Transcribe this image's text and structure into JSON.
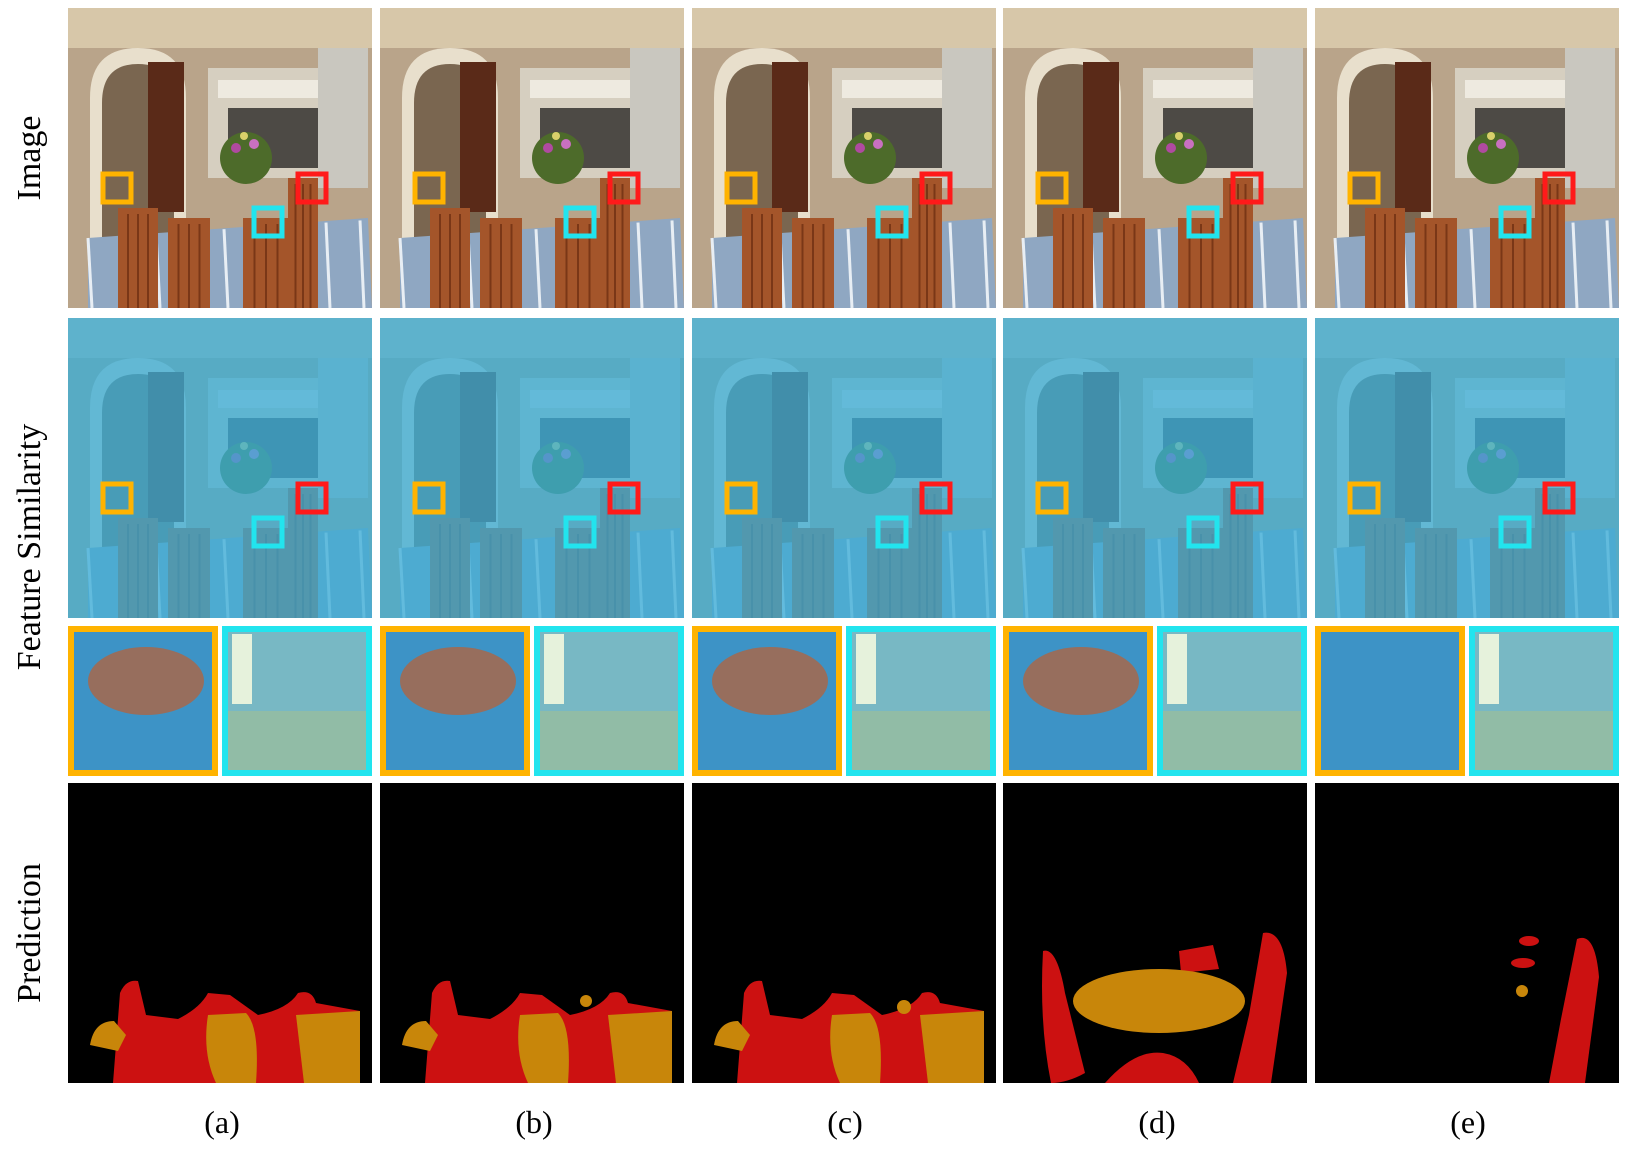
{
  "figure": {
    "row_labels": [
      "Image",
      "Feature Similarity",
      "Prediction"
    ],
    "column_labels": [
      "(a)",
      "(b)",
      "(c)",
      "(d)",
      "(e)"
    ],
    "box_colors": {
      "orange": "#ffb300",
      "red": "#ff1a1a",
      "cyan": "#22e4ee"
    },
    "prediction_colors": {
      "background": "#000000",
      "red_region": "#cc1111",
      "gold_region": "#c8860a"
    }
  }
}
